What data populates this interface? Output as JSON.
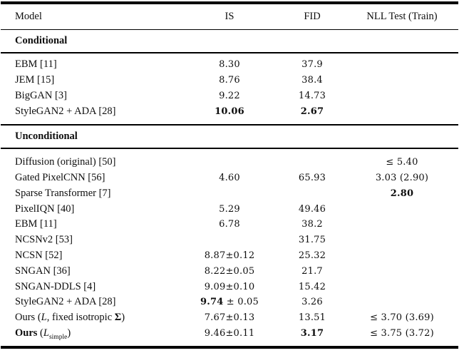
{
  "page": {
    "background_color": "#ffffff",
    "text_color": "#0e0e0e",
    "rule_color": "#000000"
  },
  "table": {
    "columns": [
      {
        "key": "model",
        "label": "Model"
      },
      {
        "key": "is",
        "label": "IS"
      },
      {
        "key": "fid",
        "label": "FID"
      },
      {
        "key": "nll",
        "label": "NLL Test (Train)"
      }
    ],
    "sections": [
      {
        "label": "Conditional",
        "rows": [
          {
            "model": [
              {
                "t": "EBM [11]"
              }
            ],
            "is": [
              {
                "t": "8.30"
              }
            ],
            "fid": [
              {
                "t": "37.9"
              }
            ],
            "nll": []
          },
          {
            "model": [
              {
                "t": "JEM [15]"
              }
            ],
            "is": [
              {
                "t": "8.76"
              }
            ],
            "fid": [
              {
                "t": "38.4"
              }
            ],
            "nll": []
          },
          {
            "model": [
              {
                "t": "BigGAN [3]"
              }
            ],
            "is": [
              {
                "t": "9.22"
              }
            ],
            "fid": [
              {
                "t": "14.73"
              }
            ],
            "nll": []
          },
          {
            "model": [
              {
                "t": "StyleGAN2 + ADA [28]"
              }
            ],
            "is": [
              {
                "t": "10.06",
                "b": true
              }
            ],
            "fid": [
              {
                "t": "2.67",
                "b": true
              }
            ],
            "nll": []
          }
        ]
      },
      {
        "label": "Unconditional",
        "rows": [
          {
            "model": [
              {
                "t": "Diffusion (original) [50]"
              }
            ],
            "is": [],
            "fid": [],
            "nll": [
              {
                "t": "≤ 5.40"
              }
            ]
          },
          {
            "model": [
              {
                "t": "Gated PixelCNN [56]"
              }
            ],
            "is": [
              {
                "t": "4.60"
              }
            ],
            "fid": [
              {
                "t": "65.93"
              }
            ],
            "nll": [
              {
                "t": "3.03 (2.90)"
              }
            ]
          },
          {
            "model": [
              {
                "t": "Sparse Transformer [7]"
              }
            ],
            "is": [],
            "fid": [],
            "nll": [
              {
                "t": "2.80",
                "b": true
              }
            ]
          },
          {
            "model": [
              {
                "t": "PixelIQN [40]"
              }
            ],
            "is": [
              {
                "t": "5.29"
              }
            ],
            "fid": [
              {
                "t": "49.46"
              }
            ],
            "nll": []
          },
          {
            "model": [
              {
                "t": "EBM [11]"
              }
            ],
            "is": [
              {
                "t": "6.78"
              }
            ],
            "fid": [
              {
                "t": "38.2"
              }
            ],
            "nll": []
          },
          {
            "model": [
              {
                "t": "NCSNv2 [53]"
              }
            ],
            "is": [],
            "fid": [
              {
                "t": "31.75"
              }
            ],
            "nll": []
          },
          {
            "model": [
              {
                "t": "NCSN [52]"
              }
            ],
            "is": [
              {
                "t": "8.87±0.12"
              }
            ],
            "fid": [
              {
                "t": "25.32"
              }
            ],
            "nll": []
          },
          {
            "model": [
              {
                "t": "SNGAN [36]"
              }
            ],
            "is": [
              {
                "t": "8.22±0.05"
              }
            ],
            "fid": [
              {
                "t": "21.7"
              }
            ],
            "nll": []
          },
          {
            "model": [
              {
                "t": "SNGAN-DDLS [4]"
              }
            ],
            "is": [
              {
                "t": "9.09±0.10"
              }
            ],
            "fid": [
              {
                "t": "15.42"
              }
            ],
            "nll": []
          },
          {
            "model": [
              {
                "t": "StyleGAN2 + ADA [28]"
              }
            ],
            "is": [
              {
                "t": "9.74",
                "b": true
              },
              {
                "t": " ± 0.05"
              }
            ],
            "fid": [
              {
                "t": "3.26"
              }
            ],
            "nll": []
          },
          {
            "model": [
              {
                "t": "Ours ("
              },
              {
                "t": "L",
                "i": true
              },
              {
                "t": ", fixed isotropic "
              },
              {
                "t": "Σ",
                "b": true
              },
              {
                "t": ")"
              }
            ],
            "is": [
              {
                "t": "7.67±0.13"
              }
            ],
            "fid": [
              {
                "t": "13.51"
              }
            ],
            "nll": [
              {
                "t": "≤ 3.70 (3.69)"
              }
            ]
          },
          {
            "model": [
              {
                "t": "Ours",
                "b": true
              },
              {
                "t": " ("
              },
              {
                "t": "L",
                "i": true
              },
              {
                "t": "simple",
                "sub": true
              },
              {
                "t": ")"
              }
            ],
            "is": [
              {
                "t": "9.46±0.11"
              }
            ],
            "fid": [
              {
                "t": "3.17",
                "b": true
              }
            ],
            "nll": [
              {
                "t": "≤ 3.75 (3.72)"
              }
            ]
          }
        ]
      }
    ]
  }
}
